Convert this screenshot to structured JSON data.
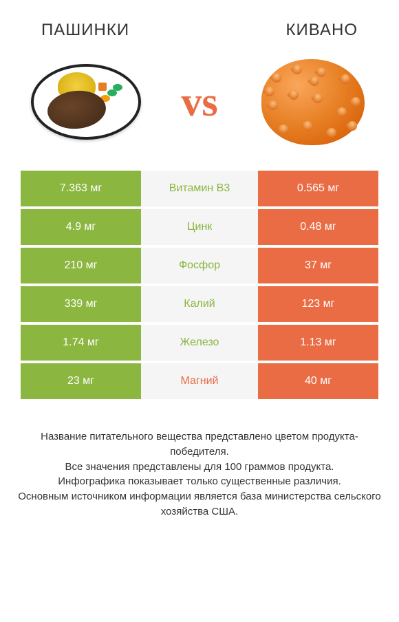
{
  "header": {
    "left_title": "ПАШИНКИ",
    "right_title": "КИВАНО"
  },
  "vs_label": "vs",
  "colors": {
    "left_bar": "#8bb63f",
    "right_bar": "#e96c44",
    "mid_bg": "#f5f5f5",
    "vs_color": "#e96c44"
  },
  "rows": [
    {
      "left": "7.363 мг",
      "label": "Витамин B3",
      "right": "0.565 мг",
      "winner": "left"
    },
    {
      "left": "4.9 мг",
      "label": "Цинк",
      "right": "0.48 мг",
      "winner": "left"
    },
    {
      "left": "210 мг",
      "label": "Фосфор",
      "right": "37 мг",
      "winner": "left"
    },
    {
      "left": "339 мг",
      "label": "Калий",
      "right": "123 мг",
      "winner": "left"
    },
    {
      "left": "1.74 мг",
      "label": "Железо",
      "right": "1.13 мг",
      "winner": "left"
    },
    {
      "left": "23 мг",
      "label": "Магний",
      "right": "40 мг",
      "winner": "right"
    }
  ],
  "footer": {
    "line1": "Название питательного вещества представлено цветом продукта-победителя.",
    "line2": "Все значения представлены для 100 граммов продукта.",
    "line3": "Инфографика показывает только существенные различия.",
    "line4": "Основным источником информации является база министерства сельского хозяйства США."
  }
}
